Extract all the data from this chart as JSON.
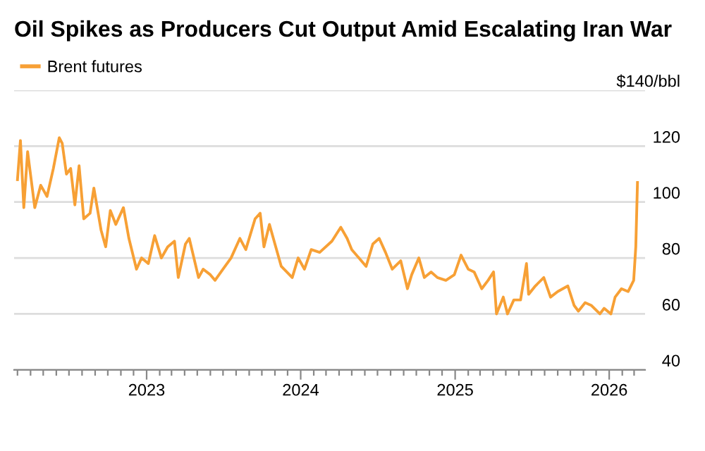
{
  "chart_data": {
    "type": "line",
    "title": "Oil Spikes as Producers Cut Output Amid Escalating Iran War",
    "series": [
      {
        "name": "Brent futures",
        "color": "#f7a035",
        "x": [
          "2022-03-01",
          "2022-03-08",
          "2022-03-16",
          "2022-03-25",
          "2022-04-11",
          "2022-04-25",
          "2022-05-10",
          "2022-05-25",
          "2022-06-08",
          "2022-06-15",
          "2022-06-25",
          "2022-07-05",
          "2022-07-15",
          "2022-07-25",
          "2022-08-05",
          "2022-08-20",
          "2022-08-29",
          "2022-09-15",
          "2022-09-26",
          "2022-10-07",
          "2022-10-20",
          "2022-11-07",
          "2022-11-20",
          "2022-12-08",
          "2022-12-20",
          "2023-01-05",
          "2023-01-20",
          "2023-02-05",
          "2023-02-20",
          "2023-03-08",
          "2023-03-17",
          "2023-04-03",
          "2023-04-12",
          "2023-05-04",
          "2023-05-15",
          "2023-06-01",
          "2023-06-12",
          "2023-07-01",
          "2023-07-20",
          "2023-08-10",
          "2023-08-24",
          "2023-09-15",
          "2023-09-27",
          "2023-10-06",
          "2023-10-19",
          "2023-11-01",
          "2023-11-16",
          "2023-12-12",
          "2023-12-26",
          "2024-01-10",
          "2024-01-26",
          "2024-02-15",
          "2024-03-15",
          "2024-04-05",
          "2024-04-20",
          "2024-05-01",
          "2024-06-04",
          "2024-06-20",
          "2024-07-05",
          "2024-07-20",
          "2024-08-05",
          "2024-08-25",
          "2024-09-10",
          "2024-09-20",
          "2024-10-07",
          "2024-10-20",
          "2024-11-05",
          "2024-11-20",
          "2024-12-10",
          "2024-12-30",
          "2025-01-15",
          "2025-02-01",
          "2025-02-15",
          "2025-03-05",
          "2025-03-20",
          "2025-04-02",
          "2025-04-09",
          "2025-04-25",
          "2025-05-05",
          "2025-05-20",
          "2025-06-05",
          "2025-06-19",
          "2025-06-24",
          "2025-07-10",
          "2025-07-30",
          "2025-08-15",
          "2025-09-01",
          "2025-09-25",
          "2025-10-10",
          "2025-10-20",
          "2025-11-05",
          "2025-11-20",
          "2025-12-10",
          "2025-12-20",
          "2026-01-05",
          "2026-01-15",
          "2026-01-30",
          "2026-02-15",
          "2026-02-28",
          "2026-03-05",
          "2026-03-09"
        ],
        "values": [
          108,
          122,
          98,
          118,
          98,
          106,
          102,
          112,
          123,
          121,
          110,
          112,
          99,
          113,
          94,
          96,
          105,
          90,
          84,
          97,
          92,
          98,
          87,
          76,
          80,
          78,
          88,
          80,
          84,
          86,
          73,
          85,
          87,
          73,
          76,
          74,
          72,
          76,
          80,
          87,
          83,
          94,
          96,
          84,
          92,
          85,
          77,
          73,
          80,
          76,
          83,
          82,
          86,
          91,
          87,
          83,
          77,
          85,
          87,
          82,
          76,
          79,
          69,
          74,
          80,
          73,
          75,
          73,
          72,
          74,
          81,
          76,
          75,
          69,
          72,
          75,
          60,
          66,
          60,
          65,
          65,
          78,
          67,
          70,
          73,
          66,
          68,
          70,
          63,
          61,
          64,
          63,
          60,
          62,
          60,
          66,
          69,
          68,
          72,
          84,
          107
        ]
      }
    ],
    "xlim": [
      "2022-02-21",
      "2026-03-27"
    ],
    "xticks": [
      {
        "value": "2023",
        "label": "2023"
      },
      {
        "value": "2024",
        "label": "2024"
      },
      {
        "value": "2025",
        "label": "2025"
      },
      {
        "value": "2026",
        "label": "2026"
      },
      {
        "value": "2022-03",
        "label": null
      },
      {
        "value": "2022-04",
        "label": null
      },
      {
        "value": "2022-05",
        "label": null
      },
      {
        "value": "2022-06",
        "label": null
      },
      {
        "value": "2022-07",
        "label": null
      },
      {
        "value": "2022-08",
        "label": null
      },
      {
        "value": "2022-09",
        "label": null
      },
      {
        "value": "2022-10",
        "label": null
      },
      {
        "value": "2022-11",
        "label": null
      },
      {
        "value": "2022-12",
        "label": null
      },
      {
        "value": "2023-02",
        "label": null
      },
      {
        "value": "2023-03",
        "label": null
      },
      {
        "value": "2023-04",
        "label": null
      },
      {
        "value": "2023-05",
        "label": null
      },
      {
        "value": "2023-06",
        "label": null
      },
      {
        "value": "2023-07",
        "label": null
      },
      {
        "value": "2023-08",
        "label": null
      },
      {
        "value": "2023-09",
        "label": null
      },
      {
        "value": "2023-10",
        "label": null
      },
      {
        "value": "2023-11",
        "label": null
      },
      {
        "value": "2023-12",
        "label": null
      },
      {
        "value": "2024-02",
        "label": null
      },
      {
        "value": "2024-03",
        "label": null
      },
      {
        "value": "2024-04",
        "label": null
      },
      {
        "value": "2024-05",
        "label": null
      },
      {
        "value": "2024-06",
        "label": null
      },
      {
        "value": "2024-07",
        "label": null
      },
      {
        "value": "2024-08",
        "label": null
      },
      {
        "value": "2024-09",
        "label": null
      },
      {
        "value": "2024-10",
        "label": null
      },
      {
        "value": "2024-11",
        "label": null
      },
      {
        "value": "2024-12",
        "label": null
      },
      {
        "value": "2025-02",
        "label": null
      },
      {
        "value": "2025-03",
        "label": null
      },
      {
        "value": "2025-04",
        "label": null
      },
      {
        "value": "2025-05",
        "label": null
      },
      {
        "value": "2025-06",
        "label": null
      },
      {
        "value": "2025-07",
        "label": null
      },
      {
        "value": "2025-08",
        "label": null
      },
      {
        "value": "2025-09",
        "label": null
      },
      {
        "value": "2025-10",
        "label": null
      },
      {
        "value": "2025-11",
        "label": null
      },
      {
        "value": "2025-12",
        "label": null
      },
      {
        "value": "2026-02",
        "label": null
      },
      {
        "value": "2026-03",
        "label": null
      }
    ],
    "ylim": [
      40,
      140
    ],
    "yticks": [
      40,
      60,
      80,
      100,
      120,
      {
        "value": 140,
        "label": "$140/bbl"
      }
    ],
    "grid": "y",
    "legend": "top left"
  }
}
